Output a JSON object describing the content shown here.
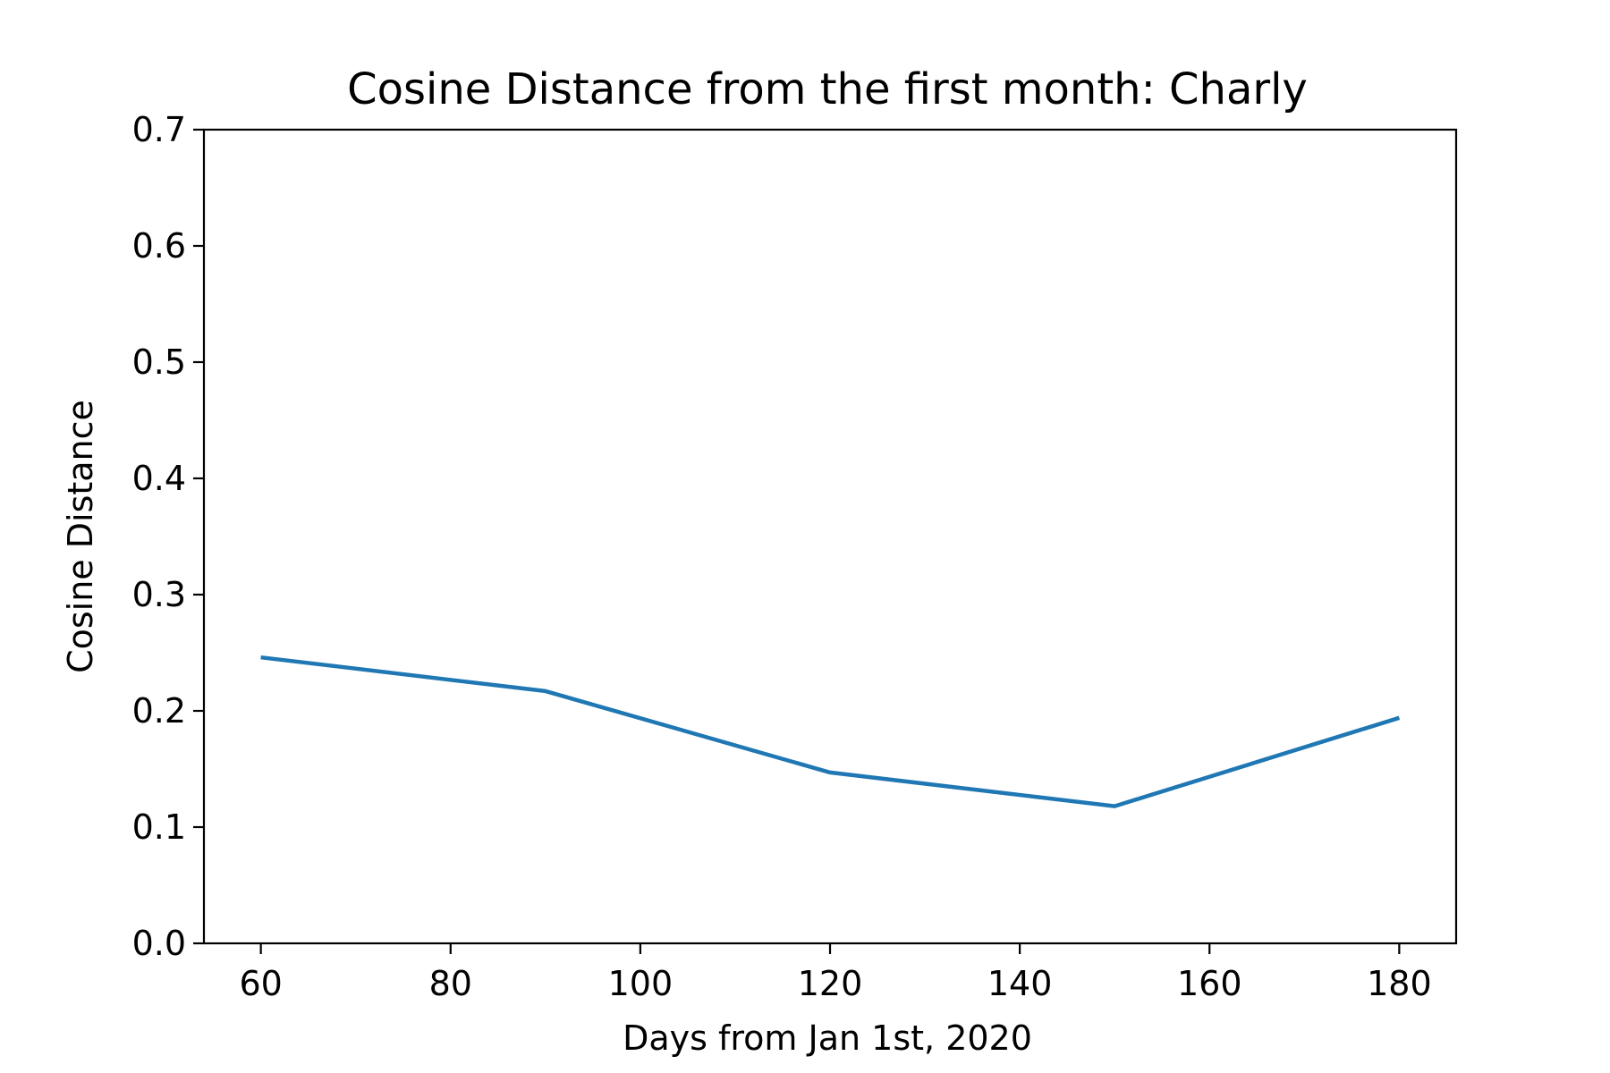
{
  "chart_data": {
    "type": "line",
    "title": "Cosine Distance from the first month: Charly",
    "xlabel": "Days from Jan 1st, 2020",
    "ylabel": "Cosine Distance",
    "xlim": [
      54,
      186
    ],
    "ylim": [
      0.0,
      0.7
    ],
    "xticks": [
      60,
      80,
      100,
      120,
      140,
      160,
      180
    ],
    "xtick_labels": [
      "60",
      "80",
      "100",
      "120",
      "140",
      "160",
      "180"
    ],
    "yticks": [
      0.0,
      0.1,
      0.2,
      0.3,
      0.4,
      0.5,
      0.6,
      0.7
    ],
    "ytick_labels": [
      "0.0",
      "0.1",
      "0.2",
      "0.3",
      "0.4",
      "0.5",
      "0.6",
      "0.7"
    ],
    "grid": false,
    "legend": false,
    "series": [
      {
        "color": "#1f77b4",
        "x": [
          60,
          90,
          120,
          150,
          180
        ],
        "y": [
          0.246,
          0.217,
          0.147,
          0.118,
          0.194
        ]
      }
    ]
  }
}
